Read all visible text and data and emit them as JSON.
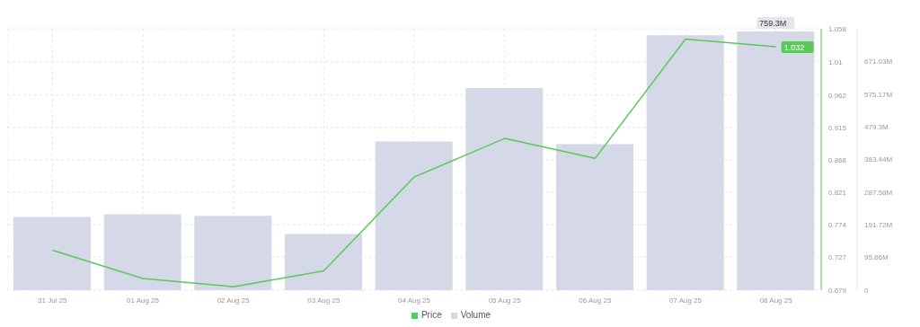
{
  "chart_data": {
    "type": "bar",
    "categories": [
      "31 Jul 25",
      "01 Aug 25",
      "02 Aug 25",
      "03 Aug 25",
      "04 Aug 25",
      "05 Aug 25",
      "06 Aug 25",
      "07 Aug 25",
      "08 Aug 25"
    ],
    "series": [
      {
        "name": "Price",
        "type": "line",
        "color": "#5cc75c",
        "values": [
          0.737,
          0.696,
          0.684,
          0.707,
          0.843,
          0.899,
          0.87,
          1.043,
          1.032
        ],
        "value_labels": [
          null,
          null,
          null,
          null,
          null,
          null,
          null,
          null,
          "1.032"
        ]
      },
      {
        "name": "Volume",
        "axis": "y2",
        "color": "#d5d8e6",
        "values": [
          215,
          223,
          218,
          165,
          436,
          593,
          428,
          748,
          759.3
        ],
        "value_labels": [
          null,
          null,
          null,
          null,
          null,
          null,
          null,
          null,
          "759.3M"
        ]
      }
    ],
    "ylim": [
      0.679,
      1.058
    ],
    "yticks": [
      0.679,
      0.727,
      0.774,
      0.821,
      0.868,
      0.915,
      0.962,
      1.01,
      1.058
    ],
    "y2lim": [
      0,
      767
    ],
    "y2ticks": [
      0,
      {
        "value": 95.86,
        "label": "95.86M"
      },
      {
        "value": 191.72,
        "label": "191.72M"
      },
      {
        "value": 287.58,
        "label": "287.58M"
      },
      {
        "value": 383.44,
        "label": "383.44M"
      },
      {
        "value": 479.3,
        "label": "479.3M"
      },
      {
        "value": 575.17,
        "label": "575.17M"
      },
      {
        "value": 671.03,
        "label": "671.03M"
      }
    ],
    "grid": true,
    "legend": "bottom",
    "marker": "none",
    "line_style": "solid"
  }
}
